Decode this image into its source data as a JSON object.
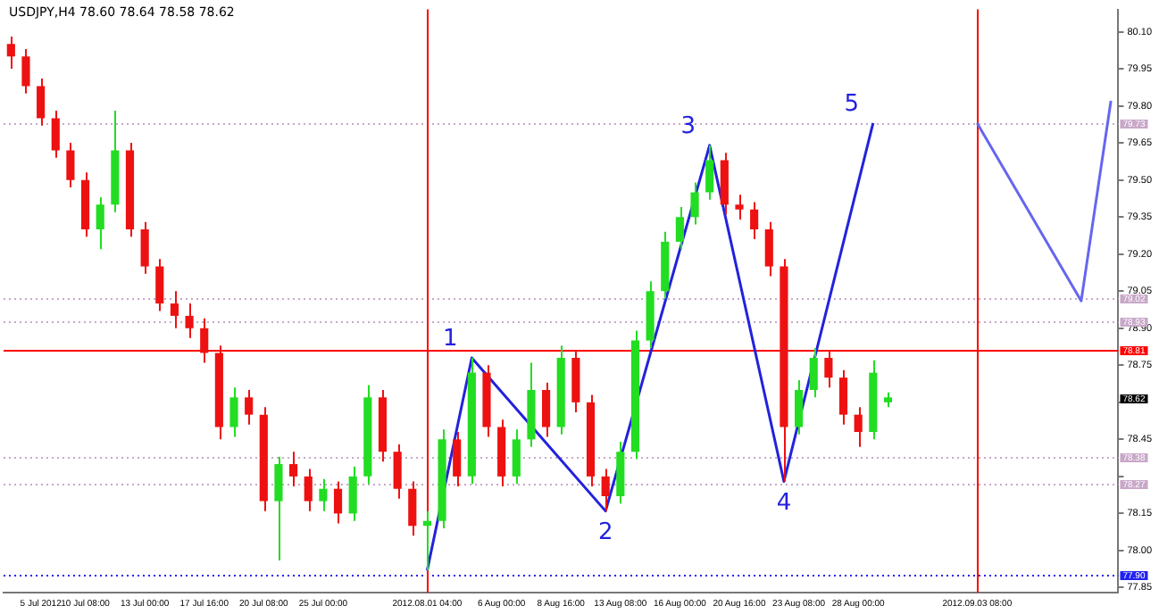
{
  "chart_data": {
    "type": "candlestick",
    "title": "USDJPY,H4 78.60 78.64 78.58 78.62",
    "categories": [
      null,
      null,
      "5 Jul 2012",
      null,
      null,
      "10 Jul 08:00",
      null,
      null,
      null,
      "13 Jul 00:00",
      null,
      null,
      null,
      "17 Jul 16:00",
      null,
      null,
      null,
      "20 Jul 08:00",
      null,
      null,
      null,
      "25 Jul 00:00",
      null,
      null,
      null,
      null,
      null,
      null,
      "2012.08.01 04:00",
      null,
      null,
      null,
      null,
      "6 Aug 00:00",
      null,
      null,
      null,
      "8 Aug 16:00",
      null,
      null,
      null,
      "13 Aug 08:00",
      null,
      null,
      null,
      "16 Aug 00:00",
      null,
      null,
      null,
      "20 Aug 16:00",
      null,
      null,
      null,
      "23 Aug 08:00",
      null,
      null,
      null,
      "28 Aug 00:00",
      null,
      null,
      null,
      null,
      null,
      null,
      null,
      "2012.09.03 08:00",
      null,
      null,
      null,
      null,
      null,
      null,
      null,
      null,
      null
    ],
    "ohlc": [
      [
        80.05,
        80.08,
        79.95,
        80.0
      ],
      [
        80.0,
        80.03,
        79.85,
        79.88
      ],
      [
        79.88,
        79.91,
        79.72,
        79.75
      ],
      [
        79.75,
        79.78,
        79.59,
        79.62
      ],
      [
        79.62,
        79.65,
        79.47,
        79.5
      ],
      [
        79.5,
        79.53,
        79.27,
        79.3
      ],
      [
        79.3,
        79.43,
        79.22,
        79.4
      ],
      [
        79.4,
        79.78,
        79.37,
        79.62
      ],
      [
        79.62,
        79.65,
        79.27,
        79.3
      ],
      [
        79.3,
        79.33,
        79.12,
        79.15
      ],
      [
        79.15,
        79.18,
        78.97,
        79.0
      ],
      [
        79.0,
        79.05,
        78.9,
        78.95
      ],
      [
        78.95,
        79.0,
        78.86,
        78.9
      ],
      [
        78.9,
        78.94,
        78.76,
        78.8
      ],
      [
        78.8,
        78.83,
        78.45,
        78.5
      ],
      [
        78.5,
        78.66,
        78.46,
        78.62
      ],
      [
        78.62,
        78.65,
        78.51,
        78.55
      ],
      [
        78.55,
        78.58,
        78.16,
        78.2
      ],
      [
        78.2,
        78.38,
        77.96,
        78.35
      ],
      [
        78.35,
        78.4,
        78.26,
        78.3
      ],
      [
        78.3,
        78.33,
        78.16,
        78.2
      ],
      [
        78.2,
        78.29,
        78.16,
        78.25
      ],
      [
        78.25,
        78.28,
        78.11,
        78.15
      ],
      [
        78.15,
        78.34,
        78.12,
        78.3
      ],
      [
        78.3,
        78.67,
        78.27,
        78.62
      ],
      [
        78.62,
        78.65,
        78.36,
        78.4
      ],
      [
        78.4,
        78.43,
        78.21,
        78.25
      ],
      [
        78.25,
        78.28,
        78.06,
        78.1
      ],
      [
        78.1,
        78.16,
        77.92,
        78.12
      ],
      [
        78.12,
        78.49,
        78.09,
        78.45
      ],
      [
        78.45,
        78.48,
        78.26,
        78.3
      ],
      [
        78.3,
        78.78,
        78.27,
        78.72
      ],
      [
        78.72,
        78.75,
        78.46,
        78.5
      ],
      [
        78.5,
        78.53,
        78.26,
        78.3
      ],
      [
        78.3,
        78.49,
        78.27,
        78.45
      ],
      [
        78.45,
        78.76,
        78.42,
        78.65
      ],
      [
        78.65,
        78.68,
        78.46,
        78.5
      ],
      [
        78.5,
        78.83,
        78.47,
        78.78
      ],
      [
        78.78,
        78.81,
        78.56,
        78.6
      ],
      [
        78.6,
        78.63,
        78.26,
        78.3
      ],
      [
        78.3,
        78.33,
        78.16,
        78.22
      ],
      [
        78.22,
        78.44,
        78.19,
        78.4
      ],
      [
        78.4,
        78.89,
        78.37,
        78.85
      ],
      [
        78.85,
        79.09,
        78.82,
        79.05
      ],
      [
        79.05,
        79.29,
        79.02,
        79.25
      ],
      [
        79.25,
        79.39,
        79.22,
        79.35
      ],
      [
        79.35,
        79.49,
        79.32,
        79.45
      ],
      [
        79.45,
        79.64,
        79.42,
        79.58
      ],
      [
        79.58,
        79.61,
        79.36,
        79.4
      ],
      [
        79.4,
        79.44,
        79.34,
        79.38
      ],
      [
        79.38,
        79.41,
        79.26,
        79.3
      ],
      [
        79.3,
        79.33,
        79.11,
        79.15
      ],
      [
        79.15,
        79.18,
        78.28,
        78.5
      ],
      [
        78.5,
        78.69,
        78.47,
        78.65
      ],
      [
        78.65,
        78.82,
        78.62,
        78.78
      ],
      [
        78.78,
        78.81,
        78.66,
        78.7
      ],
      [
        78.7,
        78.73,
        78.51,
        78.55
      ],
      [
        78.55,
        78.58,
        78.42,
        78.48
      ],
      [
        78.48,
        78.77,
        78.45,
        78.72
      ],
      [
        78.6,
        78.64,
        78.58,
        78.62
      ],
      null,
      null,
      null,
      null,
      null,
      null,
      null,
      null,
      null,
      null,
      null,
      null,
      null,
      null,
      null
    ],
    "colors": [
      "#ee1111",
      "#ee1111",
      "#ee1111",
      "#ee1111",
      "#ee1111",
      "#ee1111",
      "#22dd22",
      "#22dd22",
      "#ee1111",
      "#ee1111",
      "#ee1111",
      "#ee1111",
      "#ee1111",
      "#ee1111",
      "#ee1111",
      "#22dd22",
      "#ee1111",
      "#ee1111",
      "#22dd22",
      "#ee1111",
      "#ee1111",
      "#22dd22",
      "#ee1111",
      "#22dd22",
      "#22dd22",
      "#ee1111",
      "#ee1111",
      "#ee1111",
      "#22dd22",
      "#22dd22",
      "#ee1111",
      "#22dd22",
      "#ee1111",
      "#ee1111",
      "#22dd22",
      "#22dd22",
      "#ee1111",
      "#22dd22",
      "#ee1111",
      "#ee1111",
      "#ee1111",
      "#22dd22",
      "#22dd22",
      "#22dd22",
      "#22dd22",
      "#22dd22",
      "#22dd22",
      "#22dd22",
      "#ee1111",
      "#ee1111",
      "#ee1111",
      "#ee1111",
      "#ee1111",
      "#22dd22",
      "#22dd22",
      "#ee1111",
      "#ee1111",
      "#ee1111",
      "#22dd22",
      "#22dd22",
      null,
      null,
      null,
      null,
      null,
      null,
      null,
      null,
      null,
      null,
      null,
      null,
      null,
      null,
      null
    ],
    "series": [
      {
        "type": "line",
        "color": "#2222dd",
        "values": [
          null,
          null,
          null,
          null,
          null,
          null,
          null,
          null,
          null,
          null,
          null,
          null,
          null,
          null,
          null,
          null,
          null,
          null,
          null,
          null,
          null,
          null,
          null,
          null,
          null,
          null,
          null,
          null,
          77.92,
          null,
          null,
          78.78,
          null,
          null,
          null,
          null,
          null,
          null,
          null,
          null,
          78.16,
          null,
          null,
          null,
          null,
          null,
          null,
          79.64,
          null,
          null,
          null,
          null,
          78.28,
          null,
          null,
          null,
          null,
          null,
          79.73,
          null,
          null,
          null,
          null,
          null,
          null,
          null,
          null,
          null,
          null,
          null,
          null,
          null,
          null,
          null,
          null
        ]
      },
      {
        "type": "line",
        "color": "#6666ee",
        "values": [
          null,
          null,
          null,
          null,
          null,
          null,
          null,
          null,
          null,
          null,
          null,
          null,
          null,
          null,
          null,
          null,
          null,
          null,
          null,
          null,
          null,
          null,
          null,
          null,
          null,
          null,
          null,
          null,
          null,
          null,
          null,
          null,
          null,
          null,
          null,
          null,
          null,
          null,
          null,
          null,
          null,
          null,
          null,
          null,
          null,
          null,
          null,
          null,
          null,
          null,
          null,
          null,
          null,
          null,
          null,
          null,
          null,
          null,
          null,
          null,
          null,
          null,
          null,
          null,
          null,
          79.73,
          null,
          null,
          null,
          null,
          null,
          null,
          79.01,
          null,
          79.82
        ]
      }
    ],
    "ylim": [
      77.83,
      80.19
    ],
    "yticks": [
      {
        "value": 80.1,
        "label": "80.10"
      },
      {
        "value": 79.95,
        "label": "79.95"
      },
      {
        "value": 79.8,
        "label": "79.80"
      },
      {
        "value": 79.65,
        "label": "79.65"
      },
      {
        "value": 79.5,
        "label": "79.50"
      },
      {
        "value": 79.35,
        "label": "79.35"
      },
      {
        "value": 79.2,
        "label": "79.20"
      },
      {
        "value": 79.05,
        "label": "79.05"
      },
      {
        "value": 78.9,
        "label": "78.90"
      },
      {
        "value": 78.75,
        "label": "78.75"
      },
      {
        "value": 78.6,
        "label": null
      },
      {
        "value": 78.45,
        "label": "78.45"
      },
      {
        "value": 78.3,
        "label": null
      },
      {
        "value": 78.15,
        "label": "78.15"
      },
      {
        "value": 78.0,
        "label": "78.00"
      },
      {
        "value": 77.85,
        "label": "77.85"
      }
    ],
    "ref_lines": [
      {
        "axis": "y",
        "value": 79.73,
        "label": "79.73",
        "color": "#c8a8c8",
        "line_style": "dotted"
      },
      {
        "axis": "y",
        "value": 79.02,
        "label": "79.02",
        "color": "#c8a8c8",
        "line_style": "dotted"
      },
      {
        "axis": "y",
        "value": 78.93,
        "label": "78.93",
        "color": "#c8a8c8",
        "line_style": "dotted"
      },
      {
        "axis": "y",
        "value": 78.81,
        "label": "78.81",
        "color": "#ff0000",
        "line_style": "solid"
      },
      {
        "axis": "y",
        "value": 78.38,
        "label": "78.38",
        "color": "#c8a8c8",
        "line_style": "dotted"
      },
      {
        "axis": "y",
        "value": 78.27,
        "label": "78.27",
        "color": "#c8a8c8",
        "line_style": "dotted"
      },
      {
        "axis": "y",
        "value": 77.9,
        "label": "77.90",
        "color": "#2222ee",
        "line_style": "dotted"
      },
      {
        "axis": "x",
        "value": "2012.08.01 04:00",
        "color": "#ff0000",
        "line_style": "solid"
      },
      {
        "axis": "x",
        "value": "2012.09.03 08:00",
        "color": "#ff0000",
        "line_style": "solid"
      }
    ],
    "annotations": [
      "1",
      "2",
      "3",
      "4",
      "5",
      {
        "text": "78.62",
        "y": 78.62
      }
    ],
    "grid": false,
    "legend": false
  }
}
